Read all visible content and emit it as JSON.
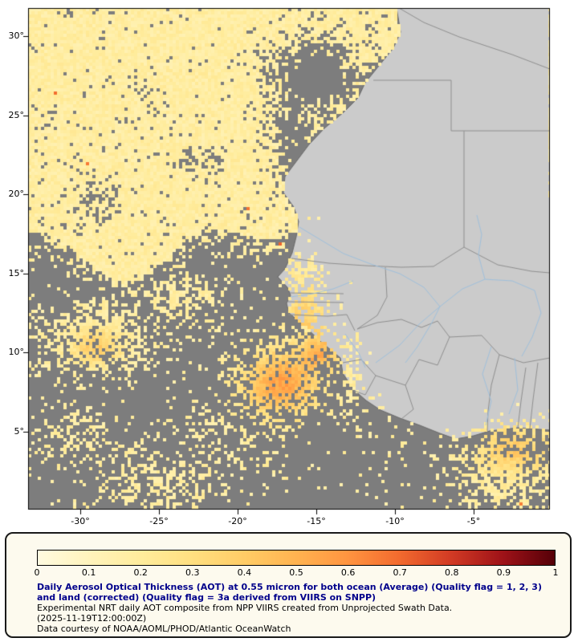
{
  "map": {
    "bg_color": "#7d7d7d",
    "land_color": "#cbcbcb",
    "coast_color": "#6a6a6a",
    "border_color": "#8f8f8f",
    "river_color": "#9fc0dc",
    "lat_ticks": [
      {
        "label": "30°",
        "value": 30
      },
      {
        "label": "25°",
        "value": 25
      },
      {
        "label": "20°",
        "value": 20
      },
      {
        "label": "15°",
        "value": 15
      },
      {
        "label": "10°",
        "value": 10
      },
      {
        "label": "5°",
        "value": 5
      }
    ],
    "lon_ticks": [
      {
        "label": "-30°",
        "value": -30
      },
      {
        "label": "-25°",
        "value": -25
      },
      {
        "label": "-20°",
        "value": -20
      },
      {
        "label": "-15°",
        "value": -15
      },
      {
        "label": "-10°",
        "value": -10
      },
      {
        "label": "-5°",
        "value": -5
      }
    ]
  },
  "colorbar": {
    "min": 0,
    "max": 1,
    "tick_labels": [
      "0",
      "0.1",
      "0.2",
      "0.3",
      "0.4",
      "0.5",
      "0.6",
      "0.7",
      "0.8",
      "0.9",
      "1"
    ],
    "colors": [
      "#fffbe0",
      "#fff3bc",
      "#ffec9c",
      "#ffdf80",
      "#ffcc66",
      "#ffb350",
      "#ff9440",
      "#f26a2e",
      "#d13a24",
      "#9e1218",
      "#550008"
    ]
  },
  "caption": {
    "title": "Daily Aerosol Optical Thickness (AOT) at 0.55 micron for both ocean (Average) (Quality flag = 1, 2, 3) and land (corrected) (Quality flag = 3a derived from VIIRS on SNPP)",
    "title_color": "#00008b",
    "line2": "Experimental NRT daily AOT composite from NPP VIIRS created from Unprojected Swath Data.",
    "line3": "(2025-11-19T12:00:00Z)",
    "line4": "Data courtesy of NOAA/AOML/PHOD/Atlantic OceanWatch"
  }
}
